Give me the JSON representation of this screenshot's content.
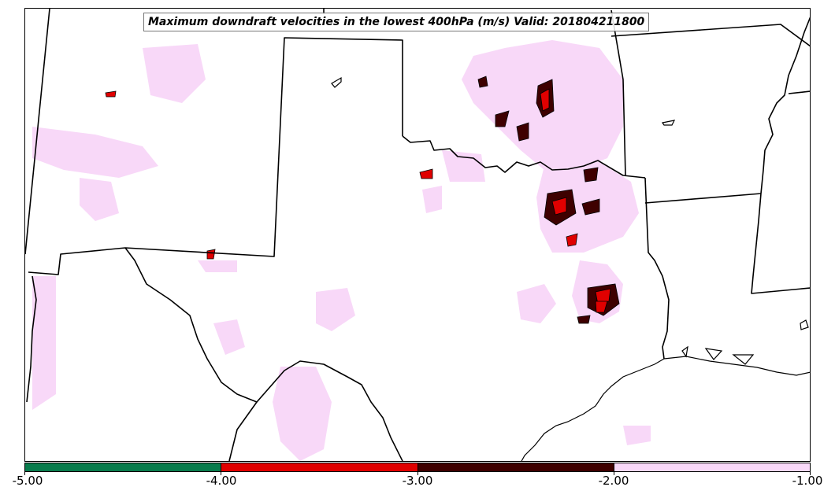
{
  "title": "Maximum downdraft velocities in the lowest 400hPa (m/s) Valid: 201804211800",
  "colorbar": {
    "bins": [
      {
        "range": [
          -5.0,
          -4.0
        ],
        "color": "#087b4c"
      },
      {
        "range": [
          -4.0,
          -3.0
        ],
        "color": "#e00000"
      },
      {
        "range": [
          -3.0,
          -2.0
        ],
        "color": "#3e0000"
      },
      {
        "range": [
          -2.0,
          -1.0
        ],
        "color": "#f8d8f8"
      }
    ],
    "tick_labels": [
      "-5.00",
      "-4.00",
      "-3.00",
      "-2.00",
      "-1.00"
    ]
  },
  "map": {
    "land_color": "#ffffff",
    "border_color": "#000000",
    "region": "Southern Great Plains / Texas",
    "fields": {
      "weak_downdraft_color": "#f8d8f8",
      "moderate_downdraft_color": "#e00000",
      "strong_downdraft_color": "#3e0000"
    }
  }
}
